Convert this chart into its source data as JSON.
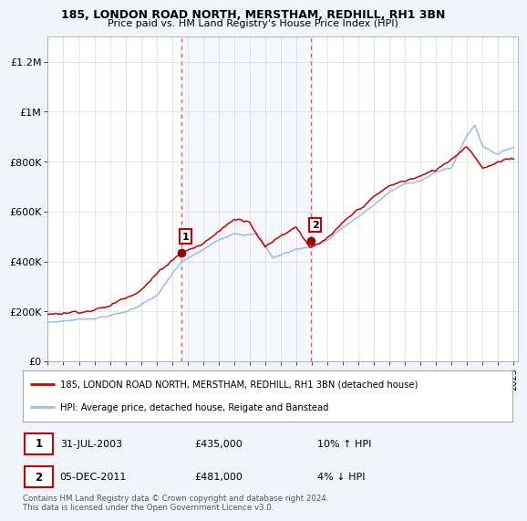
{
  "title": "185, LONDON ROAD NORTH, MERSTHAM, REDHILL, RH1 3BN",
  "subtitle": "Price paid vs. HM Land Registry's House Price Index (HPI)",
  "ylim": [
    0,
    1300000
  ],
  "yticks": [
    0,
    200000,
    400000,
    600000,
    800000,
    1000000,
    1200000
  ],
  "ytick_labels": [
    "£0",
    "£200K",
    "£400K",
    "£600K",
    "£800K",
    "£1M",
    "£1.2M"
  ],
  "bg_color": "#f0f4fa",
  "plot_bg": "#ffffff",
  "red_color": "#cc0000",
  "blue_color": "#99bbee",
  "sale1_year": 2003.58,
  "sale1_price": 435000,
  "sale2_year": 2011.92,
  "sale2_price": 481000,
  "legend_red": "185, LONDON ROAD NORTH, MERSTHAM, REDHILL, RH1 3BN (detached house)",
  "legend_blue": "HPI: Average price, detached house, Reigate and Banstead",
  "annotation1_date": "31-JUL-2003",
  "annotation1_price": "£435,000",
  "annotation1_hpi": "10% ↑ HPI",
  "annotation2_date": "05-DEC-2011",
  "annotation2_price": "£481,000",
  "annotation2_hpi": "4% ↓ HPI",
  "footer": "Contains HM Land Registry data © Crown copyright and database right 2024.\nThis data is licensed under the Open Government Licence v3.0."
}
